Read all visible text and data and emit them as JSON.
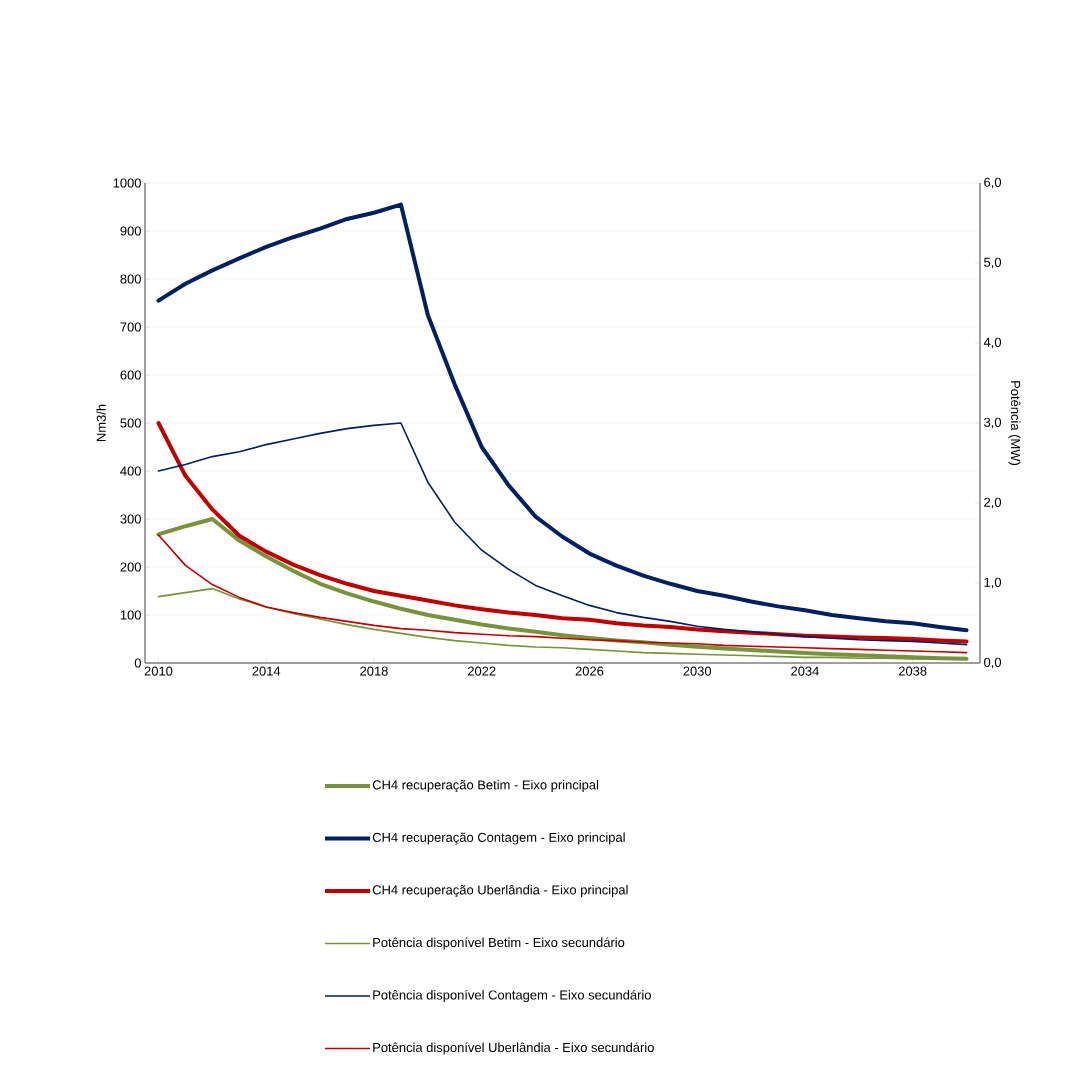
{
  "chart_data": {
    "type": "line",
    "ylabel": "Nm3/h",
    "y2label": "Potência (MW)",
    "x": [
      2010,
      2011,
      2012,
      2013,
      2014,
      2015,
      2016,
      2017,
      2018,
      2019,
      2020,
      2021,
      2022,
      2023,
      2024,
      2025,
      2026,
      2027,
      2028,
      2029,
      2030,
      2031,
      2032,
      2033,
      2034,
      2035,
      2036,
      2037,
      2038,
      2039,
      2040
    ],
    "xlim": [
      2009.5,
      2040.5
    ],
    "xticks": [
      2010,
      2014,
      2018,
      2022,
      2026,
      2030,
      2034,
      2038
    ],
    "ylim": [
      0,
      1000
    ],
    "yticks": [
      0,
      100,
      200,
      300,
      400,
      500,
      600,
      700,
      800,
      900,
      1000
    ],
    "y2lim": [
      0,
      6
    ],
    "y2ticks": [
      {
        "value": 0,
        "label": "0,0"
      },
      {
        "value": 1,
        "label": "1,0"
      },
      {
        "value": 2,
        "label": "2,0"
      },
      {
        "value": 3,
        "label": "3,0"
      },
      {
        "value": 4,
        "label": "4,0"
      },
      {
        "value": 5,
        "label": "5,0"
      },
      {
        "value": 6,
        "label": "6,0"
      }
    ],
    "grid": "y",
    "legend": "bottom",
    "marker": "none",
    "line_style": "solid",
    "series": [
      {
        "name": "CH4 recuperação Betim - Eixo principal",
        "color": "#77933c",
        "values": [
          268,
          285,
          300,
          255,
          222,
          192,
          165,
          145,
          128,
          113,
          100,
          90,
          80,
          72,
          65,
          58,
          52,
          47,
          43,
          38,
          34,
          30,
          27,
          24,
          21,
          18,
          16,
          14,
          12,
          10,
          9
        ]
      },
      {
        "name": "CH4 recuperação Contagem - Eixo principal",
        "color": "#002060",
        "values": [
          755,
          790,
          818,
          843,
          867,
          887,
          905,
          925,
          938,
          955,
          725,
          580,
          450,
          370,
          305,
          263,
          228,
          203,
          182,
          165,
          150,
          140,
          128,
          118,
          110,
          100,
          93,
          87,
          83,
          75,
          68
        ]
      },
      {
        "name": "CH4 recuperação Uberlândia - Eixo principal",
        "color": "#c00000",
        "values": [
          500,
          390,
          320,
          265,
          232,
          205,
          183,
          165,
          150,
          140,
          130,
          120,
          112,
          105,
          100,
          93,
          90,
          83,
          78,
          75,
          70,
          66,
          63,
          60,
          57,
          55,
          53,
          52,
          50,
          47,
          45
        ]
      },
      {
        "name": "Potência disponível Betim - Eixo secundário",
        "color": "#77933c",
        "axis": "y2",
        "values": [
          0.83,
          0.88,
          0.93,
          0.8,
          0.7,
          0.62,
          0.55,
          0.48,
          0.42,
          0.37,
          0.32,
          0.28,
          0.25,
          0.22,
          0.2,
          0.19,
          0.17,
          0.15,
          0.13,
          0.12,
          0.11,
          0.1,
          0.09,
          0.08,
          0.07,
          0.07,
          0.06,
          0.06,
          0.05,
          0.05,
          0.05
        ]
      },
      {
        "name": "Potência disponível Contagem - Eixo secundário",
        "color": "#002060",
        "axis": "y2",
        "values": [
          2.4,
          2.48,
          2.58,
          2.64,
          2.73,
          2.8,
          2.87,
          2.93,
          2.97,
          3.0,
          2.26,
          1.76,
          1.41,
          1.17,
          0.97,
          0.84,
          0.72,
          0.63,
          0.57,
          0.52,
          0.46,
          0.42,
          0.39,
          0.36,
          0.33,
          0.31,
          0.29,
          0.28,
          0.27,
          0.25,
          0.23
        ]
      },
      {
        "name": "Potência disponível Uberlândia - Eixo secundário",
        "color": "#c00000",
        "axis": "y2",
        "values": [
          1.6,
          1.22,
          0.98,
          0.82,
          0.7,
          0.63,
          0.57,
          0.52,
          0.47,
          0.43,
          0.41,
          0.38,
          0.36,
          0.34,
          0.33,
          0.31,
          0.29,
          0.28,
          0.26,
          0.25,
          0.24,
          0.22,
          0.21,
          0.2,
          0.19,
          0.18,
          0.17,
          0.16,
          0.15,
          0.14,
          0.13
        ]
      }
    ]
  }
}
